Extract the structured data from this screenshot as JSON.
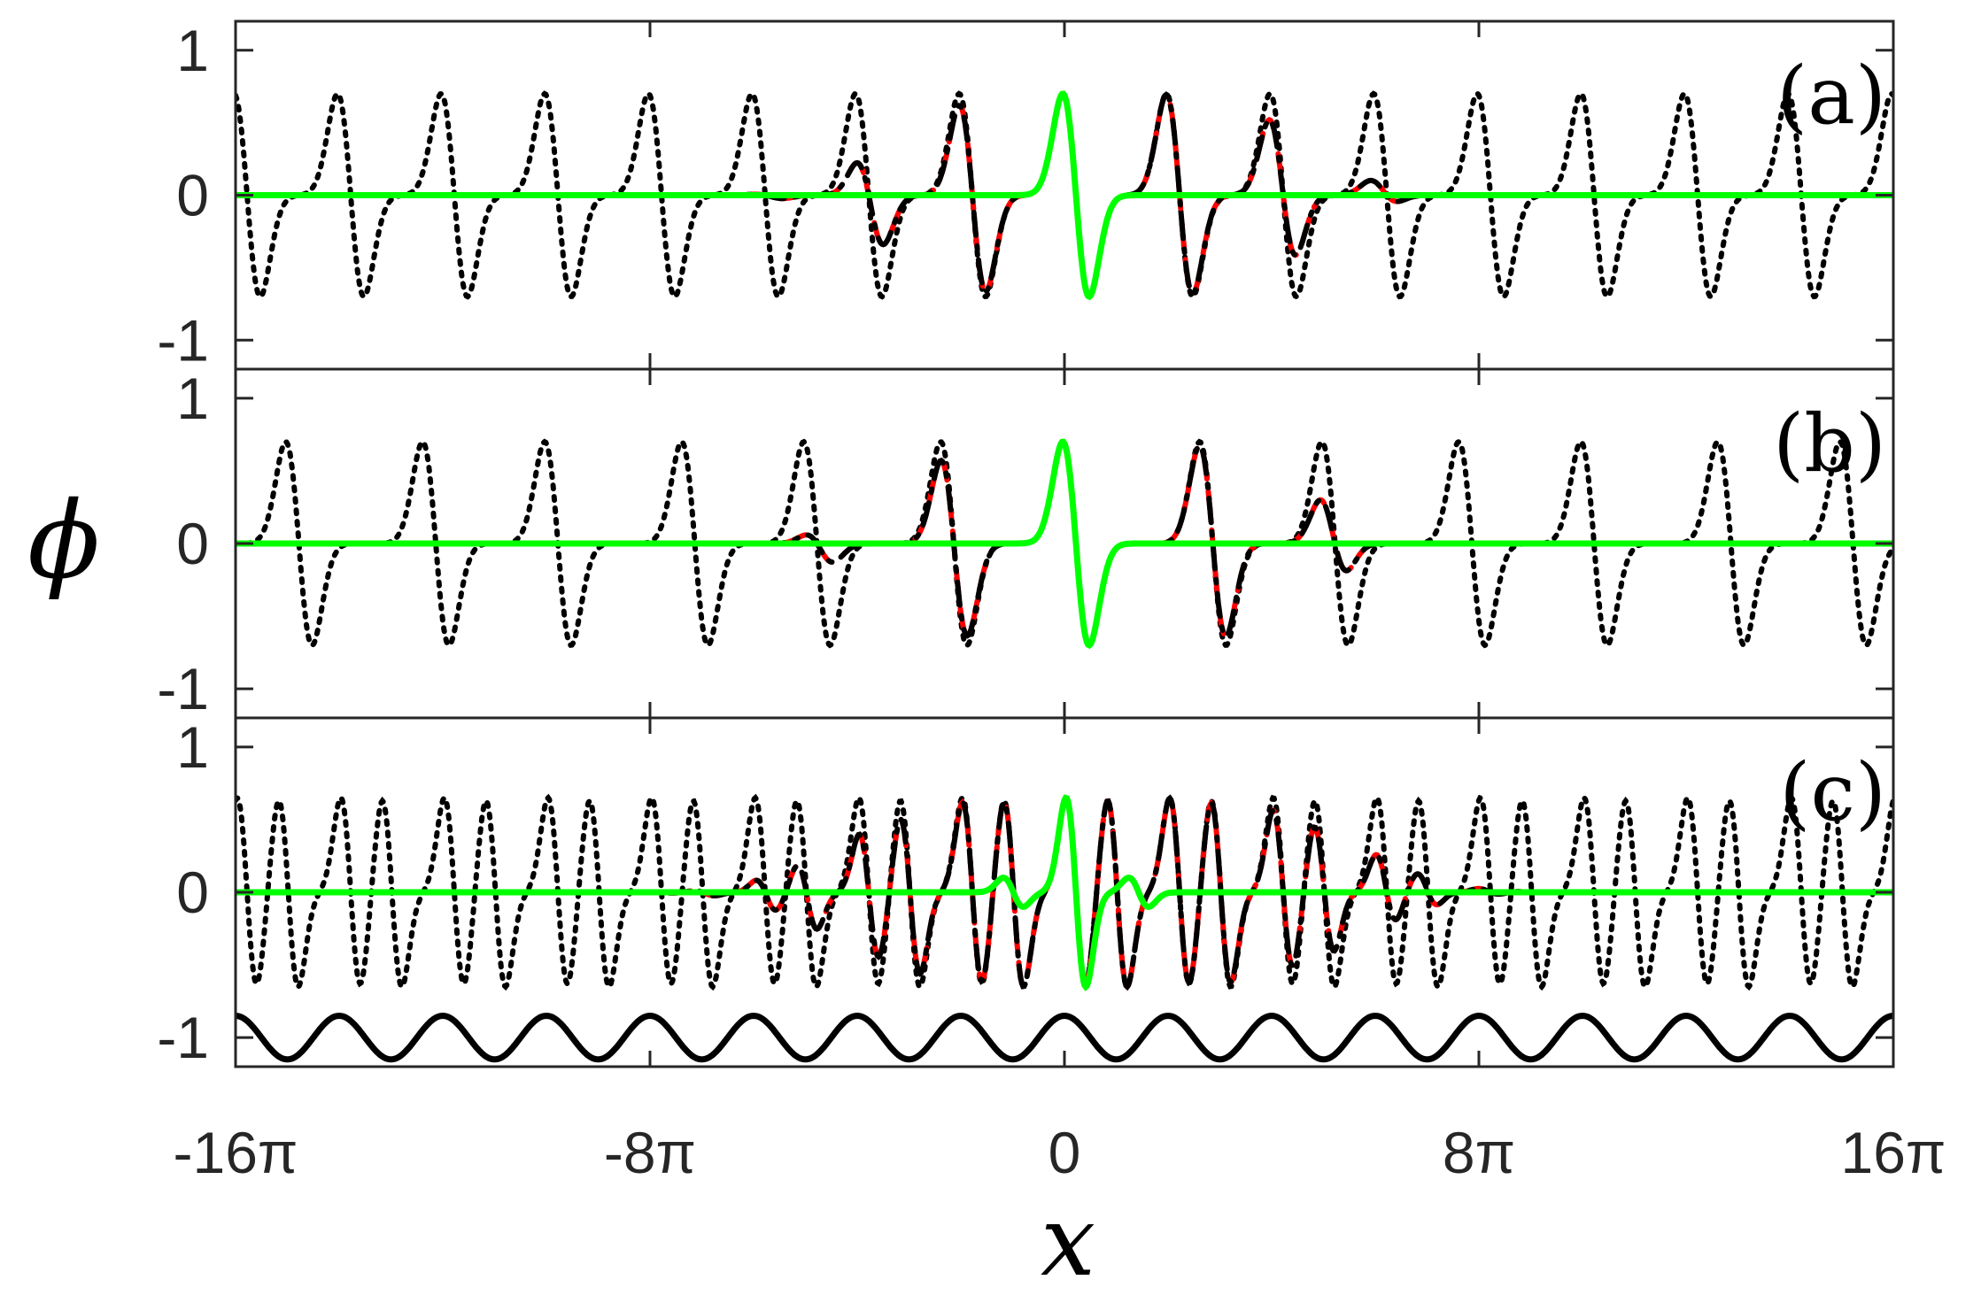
{
  "chart_data": {
    "type": "line",
    "xlabel": "x",
    "ylabel": "ϕ",
    "xlim_pi": [
      -16,
      16
    ],
    "ylim": [
      -1.2,
      1.2
    ],
    "xticks": [
      {
        "value_pi": -16,
        "label": "-16π"
      },
      {
        "value_pi": -8,
        "label": "-8π"
      },
      {
        "value_pi": 0,
        "label": "0"
      },
      {
        "value_pi": 8,
        "label": "8π"
      },
      {
        "value_pi": 16,
        "label": "16π"
      }
    ],
    "yticks": [
      {
        "value": 1,
        "label": "1"
      },
      {
        "value": 0,
        "label": "0"
      },
      {
        "value": -1,
        "label": "-1"
      }
    ],
    "grid": false,
    "series_styles": [
      {
        "style": "dotted",
        "color": "#000000"
      },
      {
        "style": "dashed",
        "color": "#ff0000"
      },
      {
        "style": "dash-dot",
        "color": "#000000"
      },
      {
        "style": "solid",
        "color": "#00ff00"
      }
    ],
    "panels": [
      {
        "label": "(a)",
        "periodic": {
          "center": 0.7,
          "amplitude": 0.7,
          "width": 0.8,
          "period_pi": 2
        },
        "localized_envelope_width_pi": 4.5,
        "soliton": {
          "center": 0.7,
          "amplitude": 0.7,
          "width": 0.8
        }
      },
      {
        "label": "(b)",
        "periodic": {
          "centers": [
            0.7,
            9.0
          ],
          "amplitude": 0.7,
          "width": 0.8,
          "period_pi": 5
        },
        "localized_envelope_width_pi": 4.5,
        "soliton": {
          "center": 0.7,
          "amplitude": 0.7,
          "width": 0.8
        }
      },
      {
        "label": "(c)",
        "periodic": {
          "centers": [
            0.7,
            3.2
          ],
          "amplitude": 0.65,
          "width": 0.6,
          "period_pi": 2
        },
        "localized_envelope_width_pi": 5.5,
        "soliton": {
          "centers": [
            0.7,
            -3.1,
            4.5
          ],
          "amplitudes": [
            0.65,
            0.1,
            0.1
          ],
          "width": 0.6
        },
        "potential": {
          "offset": -1.0,
          "amplitude": 0.15,
          "period_pi": 2
        }
      }
    ]
  }
}
